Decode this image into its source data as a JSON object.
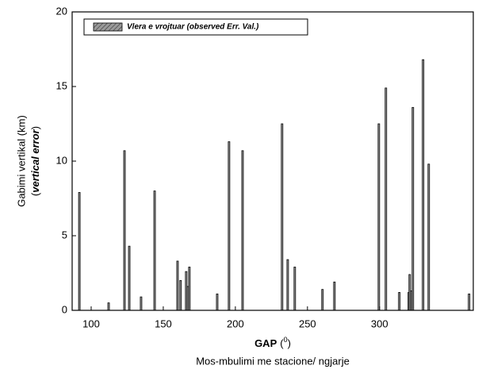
{
  "chart_data": {
    "type": "bar",
    "ylabel": {
      "line1": "Gabimi vertikal (km)",
      "open": "(",
      "emph": "vertical error",
      "close": ")"
    },
    "xlabel": {
      "main": "GAP",
      "open": "(",
      "sup": "0",
      "close": ")"
    },
    "caption": "Mos-mbulimi me stacione/ ngjarje",
    "series": [
      {
        "name": "Vlera e vrojtuar (observed Err. Val.)",
        "color": "#9a9a9a",
        "x": [
          91.8,
          112.1,
          123.1,
          126.4,
          134.6,
          144,
          159.9,
          162,
          165.9,
          167,
          168.1,
          187.4,
          195.6,
          205,
          232.4,
          236.3,
          241.2,
          260.4,
          268.7,
          299.5,
          304.4,
          313.7,
          320.3,
          320.9,
          322,
          323.1,
          330.2,
          334.1,
          362.1
        ],
        "values": [
          7.9,
          0.5,
          10.7,
          4.3,
          0.9,
          8.0,
          3.3,
          2.0,
          2.6,
          1.6,
          2.9,
          1.1,
          11.3,
          10.7,
          12.5,
          3.4,
          2.9,
          1.4,
          1.9,
          12.5,
          14.9,
          1.2,
          1.2,
          2.4,
          1.3,
          13.6,
          16.8,
          9.8,
          1.1
        ]
      }
    ],
    "xlim": [
      86.8,
      365
    ],
    "ylim": [
      0,
      20
    ],
    "xticks": [
      100,
      150,
      200,
      250,
      300
    ],
    "yticks": [
      0,
      5,
      10,
      15,
      20
    ],
    "legend": "top-left"
  }
}
